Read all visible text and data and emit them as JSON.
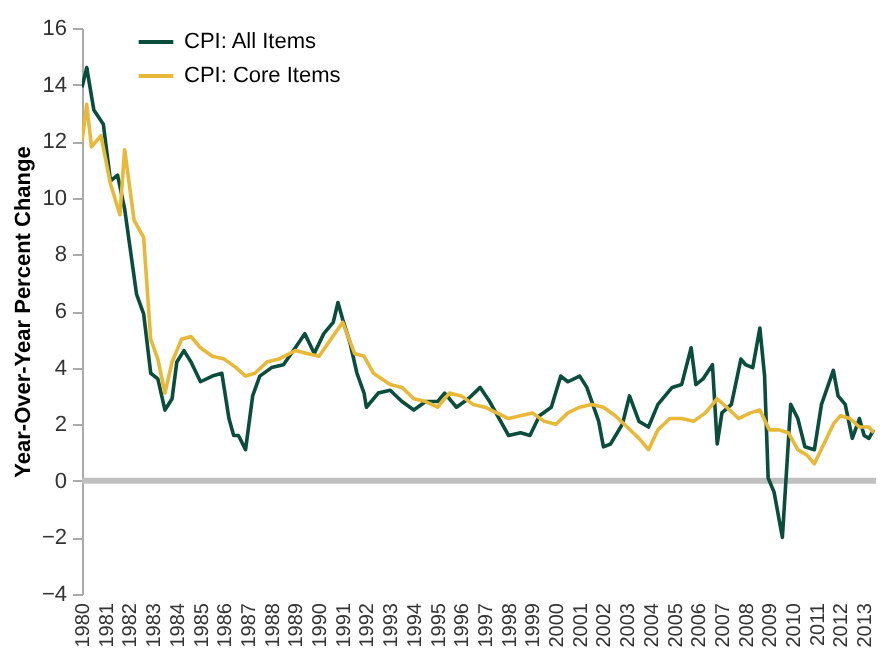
{
  "chart_data": {
    "type": "line",
    "ylabel": "Year-Over-Year Percent Change",
    "xlim": [
      1980,
      2013.5
    ],
    "xticks": [
      1980,
      1981,
      1982,
      1983,
      1984,
      1985,
      1986,
      1987,
      1988,
      1989,
      1990,
      1991,
      1992,
      1993,
      1994,
      1995,
      1996,
      1997,
      1998,
      1999,
      2000,
      2001,
      2002,
      2003,
      2004,
      2005,
      2006,
      2007,
      2008,
      2009,
      2010,
      2011,
      2012,
      2013
    ],
    "ylim": [
      -4,
      16
    ],
    "yticks": [
      -4,
      -2,
      0,
      2,
      4,
      6,
      8,
      10,
      12,
      14,
      16
    ],
    "grid": false,
    "legend": "top left",
    "line_style": "solid",
    "marker": "none",
    "ref_lines": [
      {
        "axis": "y",
        "value": 0,
        "color": "#c0c0c0"
      }
    ],
    "series": [
      {
        "name": "CPI: All Items",
        "color": "#0b4d3c",
        "x": [
          1980.0,
          1980.2,
          1980.5,
          1980.9,
          1981.2,
          1981.5,
          1981.8,
          1982.0,
          1982.3,
          1982.6,
          1982.9,
          1983.2,
          1983.5,
          1983.8,
          1984.0,
          1984.3,
          1984.6,
          1985.0,
          1985.5,
          1985.9,
          1986.2,
          1986.4,
          1986.6,
          1986.9,
          1987.2,
          1987.5,
          1988.0,
          1988.5,
          1989.0,
          1989.4,
          1989.8,
          1990.2,
          1990.6,
          1990.8,
          1991.0,
          1991.3,
          1991.6,
          1991.9,
          1992.0,
          1992.5,
          1993.0,
          1993.5,
          1994.0,
          1994.5,
          1995.0,
          1995.3,
          1995.8,
          1996.3,
          1996.8,
          1997.2,
          1997.6,
          1998.0,
          1998.5,
          1998.9,
          1999.3,
          1999.8,
          2000.2,
          2000.5,
          2001.0,
          2001.3,
          2001.8,
          2002.0,
          2002.3,
          2002.8,
          2003.1,
          2003.5,
          2003.9,
          2004.3,
          2004.6,
          2004.9,
          2005.3,
          2005.7,
          2005.9,
          2006.2,
          2006.6,
          2006.8,
          2007.0,
          2007.4,
          2007.8,
          2008.0,
          2008.3,
          2008.6,
          2008.8,
          2008.95,
          2009.2,
          2009.55,
          2009.9,
          2010.2,
          2010.5,
          2010.9,
          2011.2,
          2011.7,
          2011.9,
          2012.2,
          2012.5,
          2012.8,
          2013.0,
          2013.2,
          2013.4
        ],
        "values": [
          13.9,
          14.6,
          13.1,
          12.6,
          10.6,
          10.8,
          9.6,
          8.4,
          6.6,
          5.9,
          3.8,
          3.6,
          2.5,
          2.9,
          4.2,
          4.6,
          4.2,
          3.5,
          3.7,
          3.8,
          2.2,
          1.6,
          1.6,
          1.1,
          3.0,
          3.7,
          4.0,
          4.1,
          4.7,
          5.2,
          4.5,
          5.2,
          5.6,
          6.3,
          5.7,
          4.9,
          3.8,
          3.1,
          2.6,
          3.1,
          3.2,
          2.8,
          2.5,
          2.8,
          2.8,
          3.1,
          2.6,
          2.9,
          3.3,
          2.8,
          2.2,
          1.6,
          1.7,
          1.6,
          2.3,
          2.6,
          3.7,
          3.5,
          3.7,
          3.3,
          2.1,
          1.2,
          1.3,
          2.0,
          3.0,
          2.1,
          1.9,
          2.7,
          3.0,
          3.3,
          3.4,
          4.7,
          3.4,
          3.6,
          4.1,
          1.3,
          2.4,
          2.7,
          4.3,
          4.1,
          4.0,
          5.4,
          3.7,
          0.1,
          -0.4,
          -2.0,
          2.7,
          2.2,
          1.2,
          1.1,
          2.7,
          3.9,
          3.0,
          2.7,
          1.5,
          2.2,
          1.6,
          1.5,
          1.8
        ]
      },
      {
        "name": "CPI: Core Items",
        "color": "#e8b838",
        "x": [
          1980.0,
          1980.2,
          1980.4,
          1980.8,
          1981.2,
          1981.6,
          1981.8,
          1982.2,
          1982.6,
          1982.9,
          1983.2,
          1983.5,
          1983.8,
          1984.2,
          1984.6,
          1985.0,
          1985.5,
          1986.0,
          1986.5,
          1986.9,
          1987.3,
          1987.8,
          1988.3,
          1989.0,
          1989.5,
          1990.0,
          1990.5,
          1991.0,
          1991.5,
          1991.9,
          1992.3,
          1993.0,
          1993.5,
          1994.0,
          1994.5,
          1995.0,
          1995.5,
          1996.0,
          1996.5,
          1997.0,
          1997.5,
          1998.0,
          1998.5,
          1999.0,
          1999.5,
          2000.0,
          2000.5,
          2001.0,
          2001.5,
          2002.0,
          2002.5,
          2003.0,
          2003.5,
          2003.9,
          2004.3,
          2004.8,
          2005.3,
          2005.8,
          2006.3,
          2006.8,
          2007.2,
          2007.7,
          2008.2,
          2008.6,
          2009.0,
          2009.4,
          2009.8,
          2010.2,
          2010.6,
          2010.9,
          2011.3,
          2011.7,
          2012.0,
          2012.4,
          2012.8,
          2013.2,
          2013.4
        ],
        "values": [
          12.0,
          13.3,
          11.8,
          12.2,
          10.5,
          9.4,
          11.7,
          9.2,
          8.6,
          5.0,
          4.3,
          3.1,
          4.2,
          5.0,
          5.1,
          4.7,
          4.4,
          4.3,
          4.0,
          3.7,
          3.8,
          4.2,
          4.3,
          4.6,
          4.5,
          4.4,
          5.0,
          5.6,
          4.5,
          4.4,
          3.8,
          3.4,
          3.3,
          2.9,
          2.8,
          2.6,
          3.1,
          3.0,
          2.7,
          2.6,
          2.4,
          2.2,
          2.3,
          2.4,
          2.1,
          2.0,
          2.4,
          2.6,
          2.7,
          2.6,
          2.3,
          1.9,
          1.5,
          1.1,
          1.8,
          2.2,
          2.2,
          2.1,
          2.4,
          2.9,
          2.6,
          2.2,
          2.4,
          2.5,
          1.8,
          1.8,
          1.7,
          1.1,
          0.9,
          0.6,
          1.3,
          2.0,
          2.3,
          2.2,
          1.9,
          1.9,
          1.7
        ]
      }
    ]
  }
}
